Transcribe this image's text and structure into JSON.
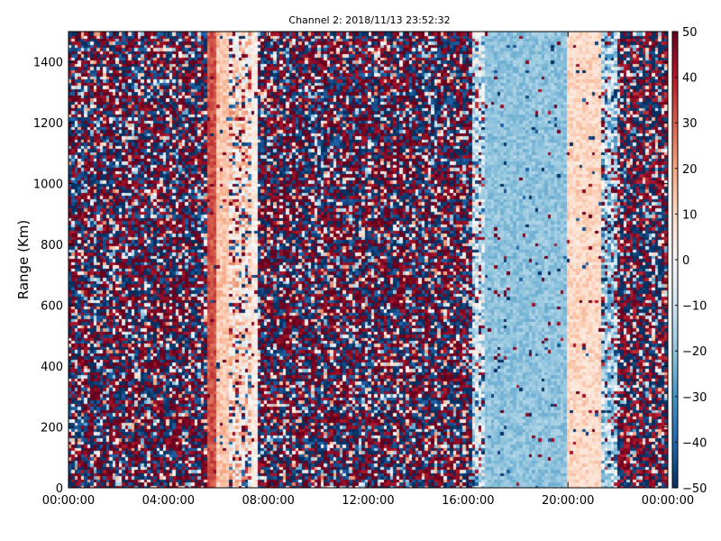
{
  "chart_data": {
    "type": "heatmap",
    "title": "Channel 2: 2018/11/13 23:52:32",
    "xlabel": "",
    "ylabel": "Range (Km)",
    "x_ticks": [
      "00:00:00",
      "04:00:00",
      "08:00:00",
      "12:00:00",
      "16:00:00",
      "20:00:00",
      "00:00:00"
    ],
    "xlim_hours": [
      0,
      24
    ],
    "y_ticks": [
      0,
      200,
      400,
      600,
      800,
      1000,
      1200,
      1400
    ],
    "ylim": [
      0,
      1500
    ],
    "colorbar": {
      "colormap": "RdBu_r",
      "range": [
        -50,
        50
      ],
      "ticks": [
        50,
        40,
        30,
        20,
        10,
        0,
        -10,
        -20,
        -30,
        -40,
        -50
      ]
    },
    "bands": [
      {
        "start": 0.0,
        "end": 5.6,
        "character": "noisy",
        "mean": 0,
        "spread": 85
      },
      {
        "start": 5.6,
        "end": 5.9,
        "character": "smooth",
        "mean": 32,
        "spread": 10
      },
      {
        "start": 5.9,
        "end": 6.5,
        "character": "smooth",
        "mean": 14,
        "spread": 12
      },
      {
        "start": 6.5,
        "end": 7.3,
        "character": "mixed",
        "mean": 8,
        "spread": 35
      },
      {
        "start": 7.3,
        "end": 7.6,
        "character": "smooth",
        "mean": 5,
        "spread": 12
      },
      {
        "start": 7.6,
        "end": 16.2,
        "character": "noisy",
        "mean": 0,
        "spread": 85
      },
      {
        "start": 16.2,
        "end": 16.7,
        "character": "mixed",
        "mean": -8,
        "spread": 35
      },
      {
        "start": 16.7,
        "end": 20.0,
        "character": "smooth",
        "mean": -20,
        "spread": 10
      },
      {
        "start": 20.0,
        "end": 21.3,
        "character": "smooth",
        "mean": 10,
        "spread": 12
      },
      {
        "start": 21.3,
        "end": 22.0,
        "character": "mixed",
        "mean": -15,
        "spread": 35
      },
      {
        "start": 22.0,
        "end": 24.0,
        "character": "noisy",
        "mean": -12,
        "spread": 80
      }
    ]
  }
}
